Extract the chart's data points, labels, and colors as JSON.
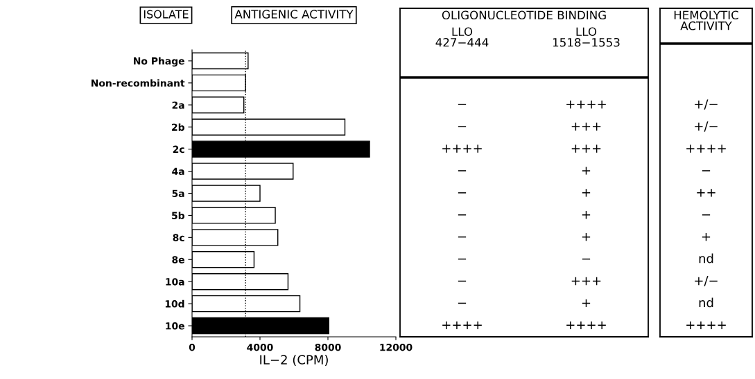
{
  "chart_data": [
    {
      "type": "bar",
      "orientation": "horizontal",
      "title": "ANTIGENIC ACTIVITY",
      "ylabel": "ISOLATE",
      "xlabel": "IL−2 (CPM)",
      "categories": [
        "No Phage",
        "Non-recombinant",
        "2a",
        "2b",
        "2c",
        "4a",
        "5a",
        "5b",
        "8c",
        "8e",
        "10a",
        "10d",
        "10e"
      ],
      "values": [
        3300,
        3150,
        3050,
        9000,
        10450,
        5950,
        4000,
        4900,
        5050,
        3650,
        5650,
        6350,
        8050
      ],
      "colors": [
        "#ffffff",
        "#ffffff",
        "#ffffff",
        "#ffffff",
        "#000000",
        "#ffffff",
        "#ffffff",
        "#ffffff",
        "#ffffff",
        "#ffffff",
        "#ffffff",
        "#ffffff",
        "#000000"
      ],
      "xlim": [
        0,
        12000
      ],
      "xticks": [
        0,
        4000,
        8000,
        12000
      ],
      "ref_lines": [
        {
          "axis": "x",
          "value": 3150,
          "color": "#000000",
          "line_style": "dotted"
        }
      ]
    },
    {
      "type": "other",
      "title": "OLIGONUCLEOTIDE BINDING",
      "categories": [
        "LLO\n427−444",
        "LLO\n1518−1553"
      ],
      "cell_labels": [
        null,
        null,
        [
          "−",
          "++++"
        ],
        [
          "−",
          "+++"
        ],
        [
          "++++",
          "+++"
        ],
        [
          "−",
          "+"
        ],
        [
          "−",
          "+"
        ],
        [
          "−",
          "+"
        ],
        [
          "−",
          "+"
        ],
        [
          "−",
          "−"
        ],
        [
          "−",
          "+++"
        ],
        [
          "−",
          "+"
        ],
        [
          "++++",
          "++++"
        ]
      ]
    },
    {
      "type": "other",
      "title": "HEMOLYTIC\nACTIVITY",
      "cell_labels": [
        null,
        null,
        [
          "+/−"
        ],
        [
          "+/−"
        ],
        [
          "++++"
        ],
        [
          "−"
        ],
        [
          "++"
        ],
        [
          "−"
        ],
        [
          "+"
        ],
        [
          "nd"
        ],
        [
          "+/−"
        ],
        [
          "nd"
        ],
        [
          "++++"
        ]
      ]
    }
  ]
}
